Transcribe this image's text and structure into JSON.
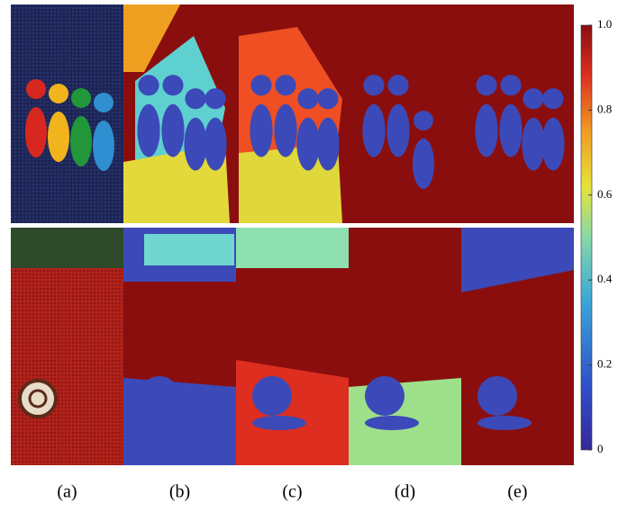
{
  "figure": {
    "panels": [
      {
        "label": "(a)"
      },
      {
        "label": "(b)"
      },
      {
        "label": "(c)"
      },
      {
        "label": "(d)"
      },
      {
        "label": "(e)"
      }
    ],
    "colorbar": {
      "lim": [
        0,
        1
      ],
      "ticks": [
        0,
        0.2,
        0.4,
        0.6,
        0.8,
        {
          "value": 1,
          "label": "1.0"
        }
      ]
    }
  }
}
